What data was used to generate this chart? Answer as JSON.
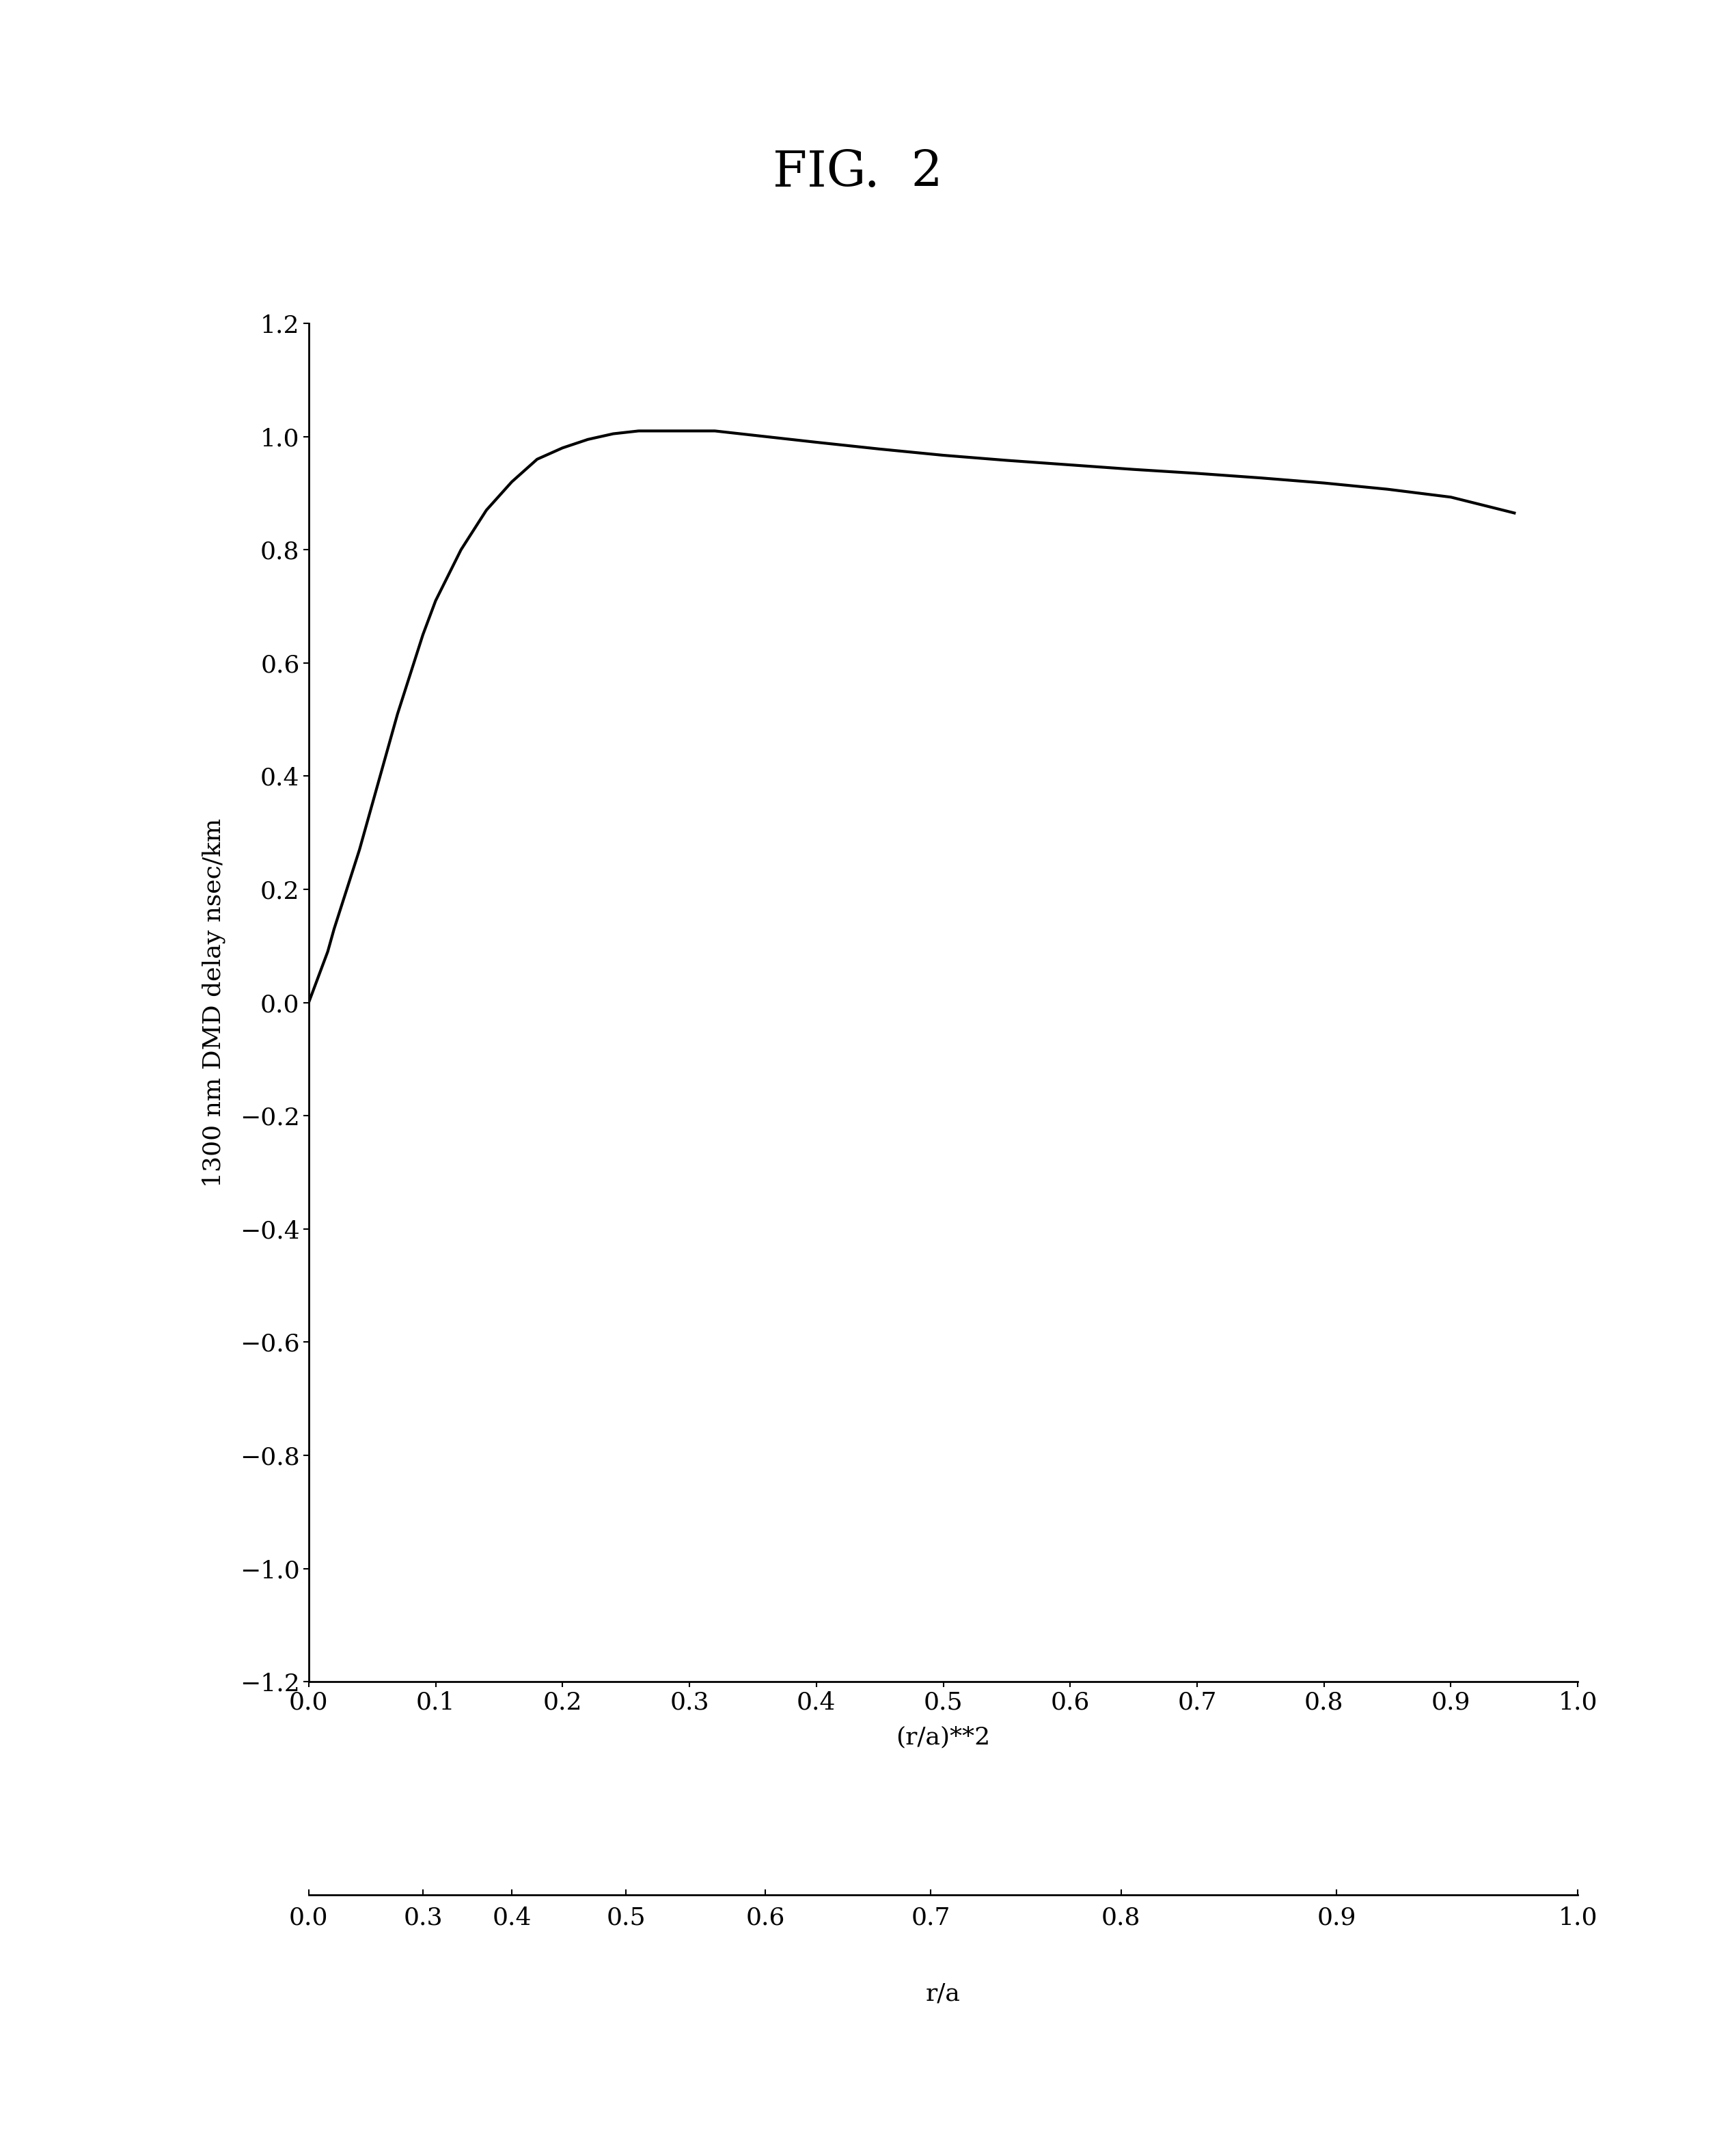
{
  "title": "FIG.  2",
  "ylabel": "1300 nm DMD delay nsec/km",
  "xlabel_main": "(r/a)**2",
  "xlabel_secondary": "r/a",
  "xlim": [
    0.0,
    1.0
  ],
  "ylim": [
    -1.2,
    1.2
  ],
  "yticks": [
    -1.2,
    -1.0,
    -0.8,
    -0.6,
    -0.4,
    -0.2,
    0.0,
    0.2,
    0.4,
    0.6,
    0.8,
    1.0,
    1.2
  ],
  "xticks_main": [
    0.0,
    0.1,
    0.2,
    0.3,
    0.4,
    0.5,
    0.6,
    0.7,
    0.8,
    0.9,
    1.0
  ],
  "xtick_main_labels": [
    "0.0",
    "0.1",
    "0.2",
    "0.3",
    "0.4",
    "0.5",
    "0.6",
    "0.7",
    "0.8",
    "0.9",
    "1.0"
  ],
  "xticks_secondary": [
    0.0,
    0.09,
    0.16,
    0.25,
    0.36,
    0.49,
    0.64,
    0.81,
    1.0
  ],
  "xtick_secondary_labels": [
    "0.0",
    "0.3",
    "0.4",
    "0.5",
    "0.6",
    "0.7",
    "0.8",
    "0.9",
    "1.0"
  ],
  "curve_x": [
    0.0,
    0.005,
    0.01,
    0.015,
    0.02,
    0.03,
    0.04,
    0.05,
    0.06,
    0.07,
    0.08,
    0.09,
    0.1,
    0.12,
    0.14,
    0.16,
    0.18,
    0.2,
    0.22,
    0.24,
    0.26,
    0.28,
    0.3,
    0.32,
    0.34,
    0.36,
    0.38,
    0.4,
    0.45,
    0.5,
    0.55,
    0.6,
    0.65,
    0.7,
    0.75,
    0.8,
    0.85,
    0.9,
    0.95
  ],
  "curve_y": [
    0.0,
    0.03,
    0.06,
    0.09,
    0.13,
    0.2,
    0.27,
    0.35,
    0.43,
    0.51,
    0.58,
    0.65,
    0.71,
    0.8,
    0.87,
    0.92,
    0.96,
    0.98,
    0.995,
    1.005,
    1.01,
    1.01,
    1.01,
    1.01,
    1.005,
    1.0,
    0.995,
    0.99,
    0.978,
    0.967,
    0.958,
    0.95,
    0.942,
    0.935,
    0.927,
    0.918,
    0.907,
    0.893,
    0.865
  ],
  "line_color": "#000000",
  "line_width": 3.0,
  "background_color": "#ffffff",
  "title_fontsize": 52,
  "axis_label_fontsize": 26,
  "tick_fontsize": 26,
  "spine_linewidth": 2.0
}
